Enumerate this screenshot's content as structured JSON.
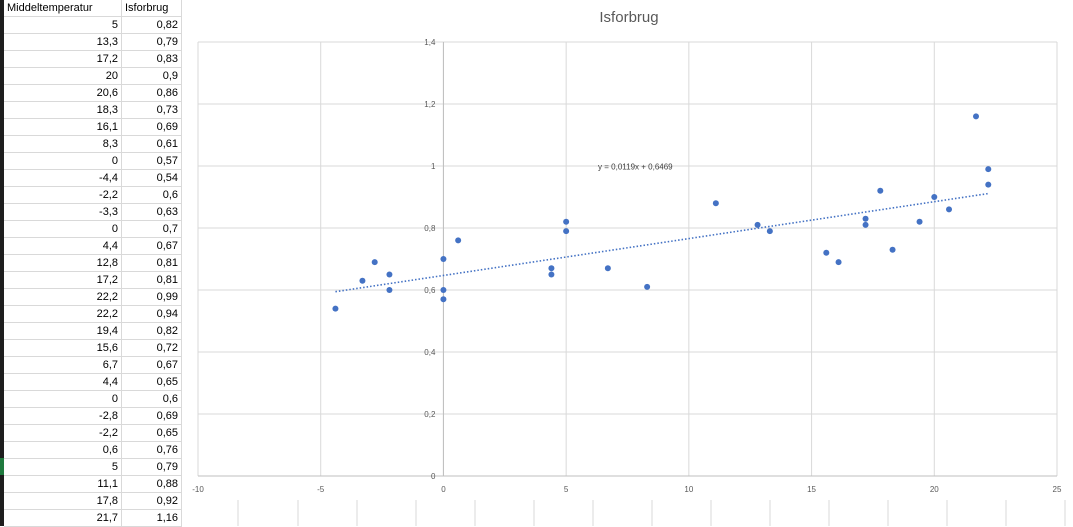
{
  "sheet": {
    "headers": [
      "Middeltemperatur",
      "Isforbrug"
    ],
    "rows": [
      [
        "5",
        "0,82"
      ],
      [
        "13,3",
        "0,79"
      ],
      [
        "17,2",
        "0,83"
      ],
      [
        "20",
        "0,9"
      ],
      [
        "20,6",
        "0,86"
      ],
      [
        "18,3",
        "0,73"
      ],
      [
        "16,1",
        "0,69"
      ],
      [
        "8,3",
        "0,61"
      ],
      [
        "0",
        "0,57"
      ],
      [
        "-4,4",
        "0,54"
      ],
      [
        "-2,2",
        "0,6"
      ],
      [
        "-3,3",
        "0,63"
      ],
      [
        "0",
        "0,7"
      ],
      [
        "4,4",
        "0,67"
      ],
      [
        "12,8",
        "0,81"
      ],
      [
        "17,2",
        "0,81"
      ],
      [
        "22,2",
        "0,99"
      ],
      [
        "22,2",
        "0,94"
      ],
      [
        "19,4",
        "0,82"
      ],
      [
        "15,6",
        "0,72"
      ],
      [
        "6,7",
        "0,67"
      ],
      [
        "4,4",
        "0,65"
      ],
      [
        "0",
        "0,6"
      ],
      [
        "-2,8",
        "0,69"
      ],
      [
        "-2,2",
        "0,65"
      ],
      [
        "0,6",
        "0,76"
      ],
      [
        "5",
        "0,79"
      ],
      [
        "11,1",
        "0,88"
      ],
      [
        "17,8",
        "0,92"
      ],
      [
        "21,7",
        "1,16"
      ]
    ]
  },
  "chart_data": {
    "type": "scatter",
    "title": "Isforbrug",
    "xlabel": "",
    "ylabel": "",
    "xlim": [
      -10,
      25
    ],
    "ylim": [
      0,
      1.4
    ],
    "x_ticks": [
      "-10",
      "-5",
      "0",
      "5",
      "10",
      "15",
      "20",
      "25"
    ],
    "y_ticks": [
      "0",
      "0,2",
      "0,4",
      "0,6",
      "0,8",
      "1",
      "1,2",
      "1,4"
    ],
    "grid": true,
    "legend": "none",
    "series": [
      {
        "color": "#4472c4",
        "points": [
          [
            5,
            0.82
          ],
          [
            13.3,
            0.79
          ],
          [
            17.2,
            0.83
          ],
          [
            20,
            0.9
          ],
          [
            20.6,
            0.86
          ],
          [
            18.3,
            0.73
          ],
          [
            16.1,
            0.69
          ],
          [
            8.3,
            0.61
          ],
          [
            0,
            0.57
          ],
          [
            -4.4,
            0.54
          ],
          [
            -2.2,
            0.6
          ],
          [
            -3.3,
            0.63
          ],
          [
            0,
            0.7
          ],
          [
            4.4,
            0.67
          ],
          [
            12.8,
            0.81
          ],
          [
            17.2,
            0.81
          ],
          [
            22.2,
            0.99
          ],
          [
            22.2,
            0.94
          ],
          [
            19.4,
            0.82
          ],
          [
            15.6,
            0.72
          ],
          [
            6.7,
            0.67
          ],
          [
            4.4,
            0.65
          ],
          [
            0,
            0.6
          ],
          [
            -2.8,
            0.69
          ],
          [
            -2.2,
            0.65
          ],
          [
            0.6,
            0.76
          ],
          [
            5,
            0.79
          ],
          [
            11.1,
            0.88
          ],
          [
            17.8,
            0.92
          ],
          [
            21.7,
            1.16
          ]
        ]
      }
    ],
    "trendline": {
      "type": "linear",
      "slope": 0.0119,
      "intercept": 0.6469,
      "x_range": [
        -4.4,
        22.2
      ],
      "equation_label": "y = 0,0119x + 0,6469",
      "color": "#4472c4",
      "style": "dotted"
    }
  }
}
